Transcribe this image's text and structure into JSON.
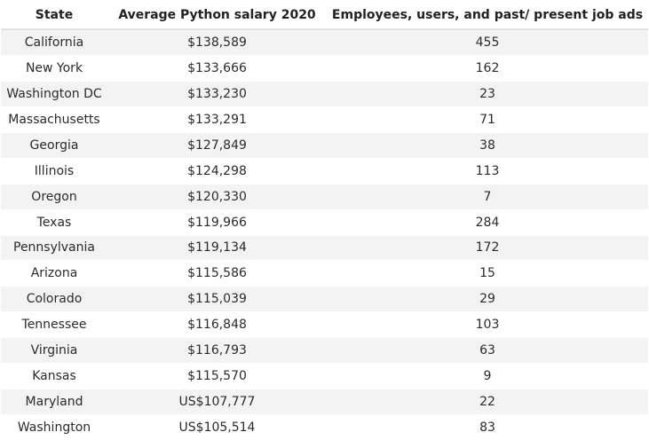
{
  "table": {
    "headers": [
      "State",
      "Average Python salary 2020",
      "Employees, users, and past/ present job ads"
    ],
    "rows": [
      [
        "California",
        "$138,589",
        "455"
      ],
      [
        "New York",
        "$133,666",
        "162"
      ],
      [
        "Washington DC",
        "$133,230",
        "23"
      ],
      [
        "Massachusetts",
        "$133,291",
        "71"
      ],
      [
        "Georgia",
        "$127,849",
        "38"
      ],
      [
        "Illinois",
        "$124,298",
        "113"
      ],
      [
        "Oregon",
        "$120,330",
        "7"
      ],
      [
        "Texas",
        "$119,966",
        "284"
      ],
      [
        "Pennsylvania",
        "$119,134",
        "172"
      ],
      [
        "Arizona",
        "$115,586",
        "15"
      ],
      [
        "Colorado",
        "$115,039",
        "29"
      ],
      [
        "Tennessee",
        "$116,848",
        "103"
      ],
      [
        "Virginia",
        "$116,793",
        "63"
      ],
      [
        "Kansas",
        "$115,570",
        "9"
      ],
      [
        "Maryland",
        "US$107,777",
        "22"
      ],
      [
        "Washington",
        "US$105,514",
        "83"
      ]
    ]
  },
  "colors": {
    "stripe_row": "#f3f3f3",
    "plain_row": "#ffffff",
    "text": "#2b2b2b"
  }
}
